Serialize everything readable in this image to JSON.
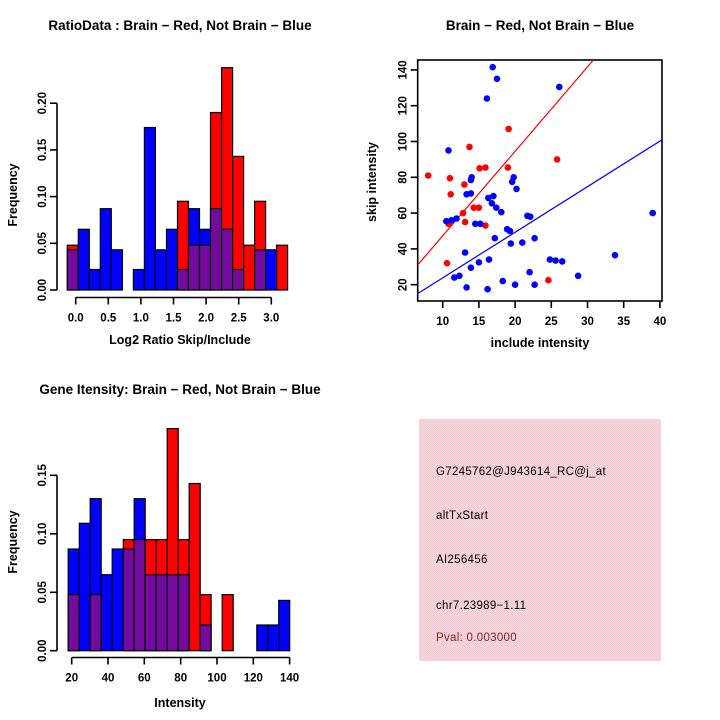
{
  "colors": {
    "red": "#ff0000",
    "blue": "#0000ff",
    "overlap_purple": "#730b9e",
    "pval_red": "#8b2323",
    "pink_panel": "#ffc5d0",
    "axis_black": "#000000",
    "background": "#ffffff"
  },
  "chart_data": [
    {
      "id": "ratio-histogram",
      "type": "histogram-overlay",
      "title": "RatioData : Brain − Red, Not Brain − Blue",
      "xlabel": "Log2 Ratio Skip/Include",
      "ylabel": "Frequency",
      "legend": {
        "red": "Brain",
        "blue": "Not Brain"
      },
      "xlim": [
        -0.15,
        3.3
      ],
      "ylim": [
        0,
        0.24
      ],
      "bin_width": 0.169,
      "x_ticks": [
        {
          "v": 0.0,
          "label": "0.0"
        },
        {
          "v": 0.5,
          "label": "0.5"
        },
        {
          "v": 1.0,
          "label": "1.0"
        },
        {
          "v": 1.5,
          "label": "1.5"
        },
        {
          "v": 2.0,
          "label": "2.0"
        },
        {
          "v": 2.5,
          "label": "2.5"
        },
        {
          "v": 3.0,
          "label": "3.0"
        }
      ],
      "y_ticks": [
        {
          "v": 0.0,
          "label": "0.00"
        },
        {
          "v": 0.05,
          "label": "0.05"
        },
        {
          "v": 0.1,
          "label": "0.10"
        },
        {
          "v": 0.15,
          "label": "0.15"
        },
        {
          "v": 0.2,
          "label": "0.20"
        }
      ],
      "bars": [
        {
          "x0": -0.129,
          "red": 0.048,
          "blue": 0.043
        },
        {
          "x0": 0.04,
          "red": 0,
          "blue": 0.065
        },
        {
          "x0": 0.209,
          "red": 0,
          "blue": 0.022
        },
        {
          "x0": 0.378,
          "red": 0,
          "blue": 0.087
        },
        {
          "x0": 0.547,
          "red": 0,
          "blue": 0.043
        },
        {
          "x0": 0.885,
          "red": 0,
          "blue": 0.022
        },
        {
          "x0": 1.054,
          "red": 0,
          "blue": 0.174
        },
        {
          "x0": 1.223,
          "red": 0,
          "blue": 0.043
        },
        {
          "x0": 1.392,
          "red": 0,
          "blue": 0.065
        },
        {
          "x0": 1.561,
          "red": 0.095,
          "blue": 0.022
        },
        {
          "x0": 1.73,
          "red": 0.048,
          "blue": 0.087
        },
        {
          "x0": 1.899,
          "red": 0.048,
          "blue": 0.065
        },
        {
          "x0": 2.068,
          "red": 0.19,
          "blue": 0.087
        },
        {
          "x0": 2.237,
          "red": 0.238,
          "blue": 0.065
        },
        {
          "x0": 2.406,
          "red": 0.143,
          "blue": 0.022
        },
        {
          "x0": 2.575,
          "red": 0.048,
          "blue": 0
        },
        {
          "x0": 2.744,
          "red": 0.095,
          "blue": 0.043
        },
        {
          "x0": 2.913,
          "red": 0,
          "blue": 0.043
        },
        {
          "x0": 3.082,
          "red": 0.048,
          "blue": 0
        }
      ]
    },
    {
      "id": "intensity-scatter",
      "type": "scatter",
      "title": "Brain − Red, Not Brain − Blue",
      "xlabel": "include intensity",
      "ylabel": "skip intensity",
      "xlim": [
        6.55,
        40.3
      ],
      "ylim": [
        11,
        145.5
      ],
      "x_ticks": [
        {
          "v": 10,
          "label": "10"
        },
        {
          "v": 15,
          "label": "15"
        },
        {
          "v": 20,
          "label": "20"
        },
        {
          "v": 25,
          "label": "25"
        },
        {
          "v": 30,
          "label": "30"
        },
        {
          "v": 35,
          "label": "35"
        },
        {
          "v": 40,
          "label": "40"
        }
      ],
      "y_ticks": [
        {
          "v": 20,
          "label": "20"
        },
        {
          "v": 40,
          "label": "40"
        },
        {
          "v": 60,
          "label": "60"
        },
        {
          "v": 80,
          "label": "80"
        },
        {
          "v": 100,
          "label": "100"
        },
        {
          "v": 120,
          "label": "120"
        },
        {
          "v": 140,
          "label": "140"
        }
      ],
      "series": [
        {
          "name": "Brain",
          "color": "red",
          "points": [
            [
              8.0,
              81
            ],
            [
              10.6,
              32
            ],
            [
              10.8,
              54
            ],
            [
              11.0,
              79.5
            ],
            [
              11.1,
              70.5
            ],
            [
              12.8,
              60
            ],
            [
              13.0,
              76
            ],
            [
              13.1,
              55
            ],
            [
              13.7,
              97
            ],
            [
              14.3,
              63
            ],
            [
              15.0,
              63
            ],
            [
              15.1,
              85
            ],
            [
              15.9,
              85.5
            ],
            [
              15.9,
              53
            ],
            [
              19.0,
              85.5
            ],
            [
              19.1,
              107
            ],
            [
              24.6,
              22.5
            ],
            [
              25.8,
              90
            ]
          ]
        },
        {
          "name": "Not Brain",
          "color": "blue",
          "points": [
            [
              16.9,
              141.5
            ],
            [
              17.5,
              135
            ],
            [
              16.1,
              124
            ],
            [
              26.1,
              130.5
            ],
            [
              10.8,
              95
            ],
            [
              14.0,
              80
            ],
            [
              19.8,
              80
            ],
            [
              13.9,
              78.5
            ],
            [
              19.6,
              77.5
            ],
            [
              20.2,
              73.5
            ],
            [
              13.3,
              70.5
            ],
            [
              13.9,
              71
            ],
            [
              16.3,
              68.5
            ],
            [
              17.0,
              69.5
            ],
            [
              16.8,
              65.5
            ],
            [
              17.4,
              63
            ],
            [
              18.1,
              60.5
            ],
            [
              10.5,
              55.5
            ],
            [
              11.2,
              56
            ],
            [
              11.9,
              57
            ],
            [
              14.5,
              54
            ],
            [
              15.2,
              54
            ],
            [
              18.9,
              51
            ],
            [
              19.3,
              50
            ],
            [
              21.7,
              58.5
            ],
            [
              22.1,
              58
            ],
            [
              17.2,
              46
            ],
            [
              19.4,
              43
            ],
            [
              21.0,
              43.5
            ],
            [
              22.7,
              46
            ],
            [
              13.1,
              38
            ],
            [
              15.0,
              32.5
            ],
            [
              16.4,
              34
            ],
            [
              24.8,
              34
            ],
            [
              25.6,
              33.5
            ],
            [
              26.5,
              33
            ],
            [
              33.8,
              36.5
            ],
            [
              11.6,
              24
            ],
            [
              12.3,
              25
            ],
            [
              13.9,
              29.5
            ],
            [
              18.3,
              22
            ],
            [
              20.0,
              20
            ],
            [
              22.0,
              27
            ],
            [
              22.7,
              20
            ],
            [
              28.7,
              25
            ],
            [
              13.3,
              18.5
            ],
            [
              16.2,
              17.5
            ],
            [
              39.0,
              60
            ]
          ]
        }
      ],
      "fit_lines": [
        {
          "color": "red",
          "x1": 6.55,
          "y1": 31,
          "x2": 30.8,
          "y2": 145.5
        },
        {
          "color": "blue",
          "x1": 6.55,
          "y1": 15,
          "x2": 40.3,
          "y2": 101
        }
      ]
    },
    {
      "id": "gene-intensity-histogram",
      "type": "histogram-overlay",
      "title": "Gene Itensity: Brain − Red, Not Brain − Blue",
      "xlabel": "Intensity",
      "ylabel": "Frequency",
      "legend": {
        "red": "Brain",
        "blue": "Not Brain"
      },
      "xlim": [
        18,
        141
      ],
      "ylim": [
        0,
        0.19
      ],
      "bin_width": 6.06,
      "x_ticks": [
        {
          "v": 20,
          "label": "20"
        },
        {
          "v": 40,
          "label": "40"
        },
        {
          "v": 60,
          "label": "60"
        },
        {
          "v": 80,
          "label": "80"
        },
        {
          "v": 100,
          "label": "100"
        },
        {
          "v": 120,
          "label": "120"
        },
        {
          "v": 140,
          "label": "140"
        }
      ],
      "y_ticks": [
        {
          "v": 0.0,
          "label": "0.00"
        },
        {
          "v": 0.05,
          "label": "0.05"
        },
        {
          "v": 0.1,
          "label": "0.10"
        },
        {
          "v": 0.15,
          "label": "0.15"
        }
      ],
      "bars": [
        {
          "x0": 18.1,
          "red": 0.048,
          "blue": 0.087
        },
        {
          "x0": 24.2,
          "red": 0,
          "blue": 0.109
        },
        {
          "x0": 30.2,
          "red": 0.048,
          "blue": 0.13
        },
        {
          "x0": 36.3,
          "red": 0,
          "blue": 0.065
        },
        {
          "x0": 42.3,
          "red": 0,
          "blue": 0.087
        },
        {
          "x0": 48.4,
          "red": 0.095,
          "blue": 0.087
        },
        {
          "x0": 54.4,
          "red": 0.095,
          "blue": 0.13
        },
        {
          "x0": 60.5,
          "red": 0.095,
          "blue": 0.065
        },
        {
          "x0": 66.5,
          "red": 0.095,
          "blue": 0.065
        },
        {
          "x0": 72.6,
          "red": 0.19,
          "blue": 0.065
        },
        {
          "x0": 78.6,
          "red": 0.095,
          "blue": 0.065
        },
        {
          "x0": 84.7,
          "red": 0.143,
          "blue": 0
        },
        {
          "x0": 90.7,
          "red": 0.048,
          "blue": 0.022
        },
        {
          "x0": 102.9,
          "red": 0.048,
          "blue": 0
        },
        {
          "x0": 121.9,
          "red": 0,
          "blue": 0.022
        },
        {
          "x0": 128.0,
          "red": 0,
          "blue": 0.022
        },
        {
          "x0": 134.0,
          "red": 0,
          "blue": 0.043
        }
      ]
    },
    {
      "id": "info-box",
      "type": "text-panel",
      "lines": [
        {
          "text": "G7245762@J943614_RC@j_at",
          "color": "#000000"
        },
        {
          "text": "altTxStart",
          "color": "#000000"
        },
        {
          "text": "AI256456",
          "color": "#000000"
        },
        {
          "text": "chr7.23989−1.11",
          "color": "#000000"
        },
        {
          "text": "Pval: 0.003000",
          "color": "#8b2323"
        }
      ]
    }
  ]
}
